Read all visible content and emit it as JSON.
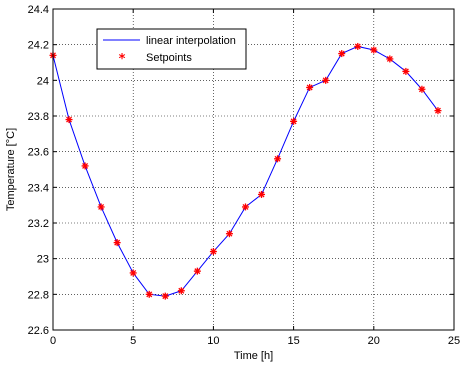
{
  "chart_data": {
    "type": "line",
    "title": "",
    "xlabel": "Time [h]",
    "ylabel": "Temperature [°C]",
    "xlim": [
      0,
      25
    ],
    "ylim": [
      22.6,
      24.4
    ],
    "xticks": [
      0,
      5,
      10,
      15,
      20,
      25
    ],
    "xtick_labels": [
      "0",
      "5",
      "10",
      "15",
      "20",
      "25"
    ],
    "yticks": [
      22.6,
      22.8,
      23.0,
      23.2,
      23.4,
      23.6,
      23.8,
      24.0,
      24.2,
      24.4
    ],
    "ytick_labels": [
      "22.6",
      "22.8",
      "23",
      "23.2",
      "23.4",
      "23.6",
      "23.8",
      "24",
      "24.2",
      "24.4"
    ],
    "grid": true,
    "legend_position": "top-left",
    "x": [
      0,
      1,
      2,
      3,
      4,
      5,
      6,
      7,
      8,
      9,
      10,
      11,
      12,
      13,
      14,
      15,
      16,
      17,
      18,
      19,
      20,
      21,
      22,
      23,
      24
    ],
    "series": [
      {
        "name": "linear interpolation",
        "style": "line",
        "color": "#0000ff",
        "values": [
          24.14,
          23.78,
          23.52,
          23.29,
          23.09,
          22.92,
          22.8,
          22.79,
          22.82,
          22.93,
          23.04,
          23.14,
          23.29,
          23.36,
          23.56,
          23.77,
          23.96,
          24.0,
          24.15,
          24.19,
          24.17,
          24.12,
          24.05,
          23.95,
          23.83
        ]
      },
      {
        "name": "Setpoints",
        "style": "marker",
        "marker": "*",
        "color": "#ff0000",
        "values": [
          24.14,
          23.78,
          23.52,
          23.29,
          23.09,
          22.92,
          22.8,
          22.79,
          22.82,
          22.93,
          23.04,
          23.14,
          23.29,
          23.36,
          23.56,
          23.77,
          23.96,
          24.0,
          24.15,
          24.19,
          24.17,
          24.12,
          24.05,
          23.95,
          23.83
        ]
      }
    ]
  }
}
